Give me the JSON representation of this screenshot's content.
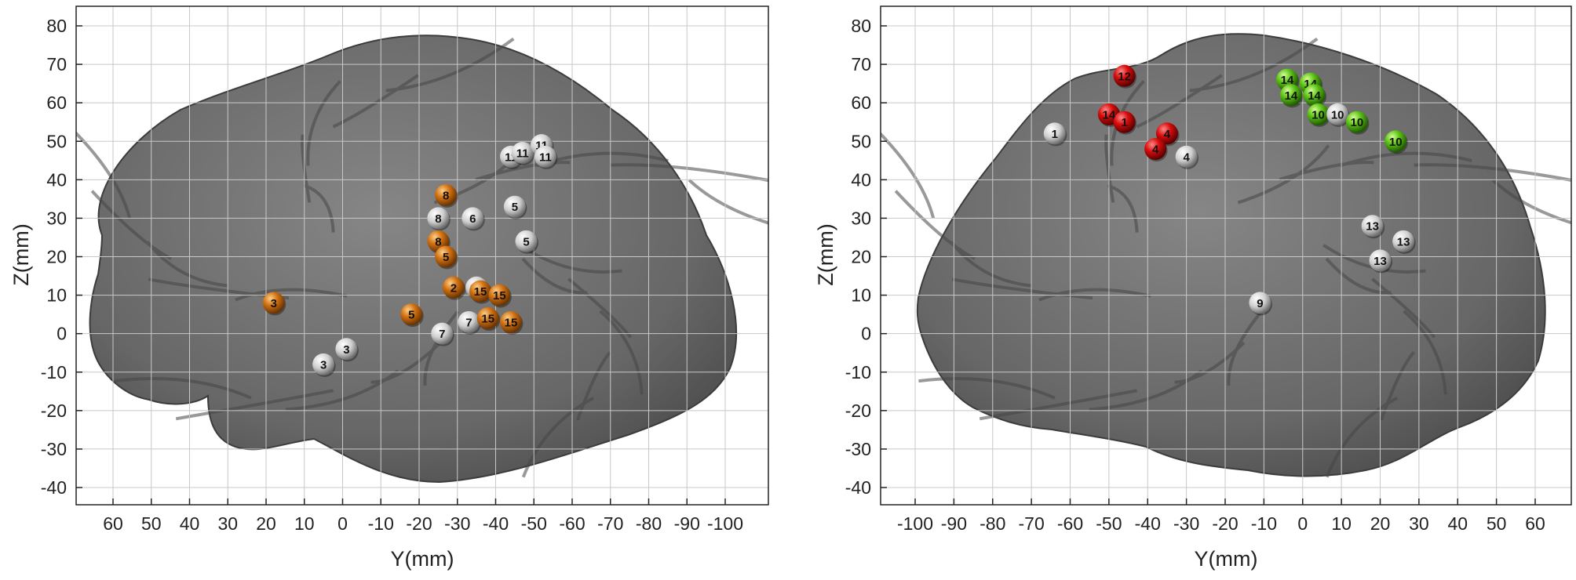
{
  "panels": [
    {
      "id": "left",
      "xlabel": "Y(mm)",
      "ylabel": "Z(mm)",
      "xticks": [
        "60",
        "50",
        "40",
        "30",
        "20",
        "10",
        "0",
        "-10",
        "-20",
        "-30",
        "-40",
        "-50",
        "-60",
        "-70",
        "-80",
        "-90",
        "-100"
      ],
      "xtick_values": [
        60,
        50,
        40,
        30,
        20,
        10,
        0,
        -10,
        -20,
        -30,
        -40,
        -50,
        -60,
        -70,
        -80,
        -90,
        -100
      ],
      "yticks": [
        "80",
        "70",
        "60",
        "50",
        "40",
        "30",
        "20",
        "10",
        "0",
        "-10",
        "-20",
        "-30",
        "-40"
      ],
      "ytick_values": [
        80,
        70,
        60,
        50,
        40,
        30,
        20,
        10,
        0,
        -10,
        -20,
        -30,
        -40
      ],
      "xlim": [
        70,
        -110
      ],
      "ylim": [
        -45,
        85
      ],
      "grid": true,
      "electrodes": [
        {
          "label": "3",
          "y": 18,
          "z": 8,
          "color": "orange"
        },
        {
          "label": "3",
          "y": -1,
          "z": -4,
          "color": "white"
        },
        {
          "label": "3",
          "y": 5,
          "z": -8,
          "color": "white"
        },
        {
          "label": "5",
          "y": -18,
          "z": 5,
          "color": "orange"
        },
        {
          "label": "7",
          "y": -26,
          "z": 0,
          "color": "white"
        },
        {
          "label": "8",
          "y": -27,
          "z": 36,
          "color": "orange"
        },
        {
          "label": "8",
          "y": -25,
          "z": 30,
          "color": "white"
        },
        {
          "label": "6",
          "y": -34,
          "z": 30,
          "color": "white"
        },
        {
          "label": "8",
          "y": -25,
          "z": 24,
          "color": "orange"
        },
        {
          "label": "5",
          "y": -27,
          "z": 20,
          "color": "orange"
        },
        {
          "label": "2",
          "y": -29,
          "z": 12,
          "color": "orange"
        },
        {
          "label": "15",
          "y": -35,
          "z": 12,
          "color": "white"
        },
        {
          "label": "15",
          "y": -36,
          "z": 11,
          "color": "orange"
        },
        {
          "label": "15",
          "y": -41,
          "z": 10,
          "color": "orange"
        },
        {
          "label": "7",
          "y": -33,
          "z": 3,
          "color": "white"
        },
        {
          "label": "15",
          "y": -38,
          "z": 4,
          "color": "orange"
        },
        {
          "label": "15",
          "y": -44,
          "z": 3,
          "color": "orange"
        },
        {
          "label": "5",
          "y": -45,
          "z": 33,
          "color": "white"
        },
        {
          "label": "5",
          "y": -48,
          "z": 24,
          "color": "white"
        },
        {
          "label": "11",
          "y": -44,
          "z": 46,
          "color": "white"
        },
        {
          "label": "11",
          "y": -47,
          "z": 47,
          "color": "white"
        },
        {
          "label": "11",
          "y": -52,
          "z": 49,
          "color": "white"
        },
        {
          "label": "11",
          "y": -53,
          "z": 46,
          "color": "white"
        }
      ]
    },
    {
      "id": "right",
      "xlabel": "Y(mm)",
      "ylabel": "Z(mm)",
      "xticks": [
        "-100",
        "-90",
        "-80",
        "-70",
        "-60",
        "-50",
        "-40",
        "-30",
        "-20",
        "-10",
        "0",
        "10",
        "20",
        "30",
        "40",
        "50",
        "60"
      ],
      "xtick_values": [
        -100,
        -90,
        -80,
        -70,
        -60,
        -50,
        -40,
        -30,
        -20,
        -10,
        0,
        10,
        20,
        30,
        40,
        50,
        60
      ],
      "yticks": [
        "80",
        "70",
        "60",
        "50",
        "40",
        "30",
        "20",
        "10",
        "0",
        "-10",
        "-20",
        "-30",
        "-40"
      ],
      "ytick_values": [
        80,
        70,
        60,
        50,
        40,
        30,
        20,
        10,
        0,
        -10,
        -20,
        -30,
        -40
      ],
      "xlim": [
        -110,
        70
      ],
      "ylim": [
        -45,
        85
      ],
      "grid": true,
      "electrodes": [
        {
          "label": "1",
          "y": -64,
          "z": 52,
          "color": "white"
        },
        {
          "label": "12",
          "y": -46,
          "z": 67,
          "color": "red"
        },
        {
          "label": "14",
          "y": -50,
          "z": 57,
          "color": "red"
        },
        {
          "label": "1",
          "y": -46,
          "z": 55,
          "color": "red"
        },
        {
          "label": "4",
          "y": -35,
          "z": 52,
          "color": "red"
        },
        {
          "label": "4",
          "y": -38,
          "z": 48,
          "color": "red"
        },
        {
          "label": "4",
          "y": -30,
          "z": 46,
          "color": "white"
        },
        {
          "label": "14",
          "y": -4,
          "z": 66,
          "color": "green"
        },
        {
          "label": "14",
          "y": 2,
          "z": 65,
          "color": "green"
        },
        {
          "label": "14",
          "y": -3,
          "z": 62,
          "color": "green"
        },
        {
          "label": "14",
          "y": 3,
          "z": 62,
          "color": "green"
        },
        {
          "label": "10",
          "y": 4,
          "z": 57,
          "color": "green"
        },
        {
          "label": "10",
          "y": 9,
          "z": 57,
          "color": "white"
        },
        {
          "label": "10",
          "y": 14,
          "z": 55,
          "color": "green"
        },
        {
          "label": "10",
          "y": 24,
          "z": 50,
          "color": "green"
        },
        {
          "label": "13",
          "y": 18,
          "z": 28,
          "color": "white"
        },
        {
          "label": "13",
          "y": 26,
          "z": 24,
          "color": "white"
        },
        {
          "label": "13",
          "y": 20,
          "z": 19,
          "color": "white"
        },
        {
          "label": "9",
          "y": -11,
          "z": 8,
          "color": "white"
        }
      ]
    }
  ],
  "colors": {
    "brain": "#6f6f6f",
    "orange": "#c86a0e",
    "white": "#d8d8d8",
    "red": "#d00c0c",
    "green": "#5cc415",
    "grid": "#c8c8c8"
  }
}
